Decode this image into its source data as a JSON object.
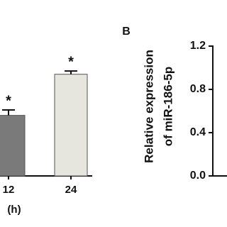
{
  "chart_data": [
    {
      "type": "bar",
      "categories": [
        "12",
        "24"
      ],
      "values": [
        0.56,
        0.94
      ],
      "errors": [
        0.05,
        0.03
      ],
      "colors": [
        "#7a7a7a",
        "#e6e6df"
      ],
      "annotations": [
        "*",
        "*"
      ],
      "x_label": "(h)",
      "ylim": [
        0,
        1.2
      ]
    },
    {
      "type": "bar",
      "panel_label": "B",
      "y_label": [
        "Relative expression",
        "of miR-186-5p"
      ],
      "ylim": [
        0,
        1.2
      ],
      "yticks": [
        {
          "value": 0,
          "label": "0.0"
        },
        {
          "value": 0.4,
          "label": "0.4"
        },
        {
          "value": 0.8,
          "label": "0.8"
        },
        {
          "value": 1.2,
          "label": "1.2"
        }
      ]
    }
  ]
}
